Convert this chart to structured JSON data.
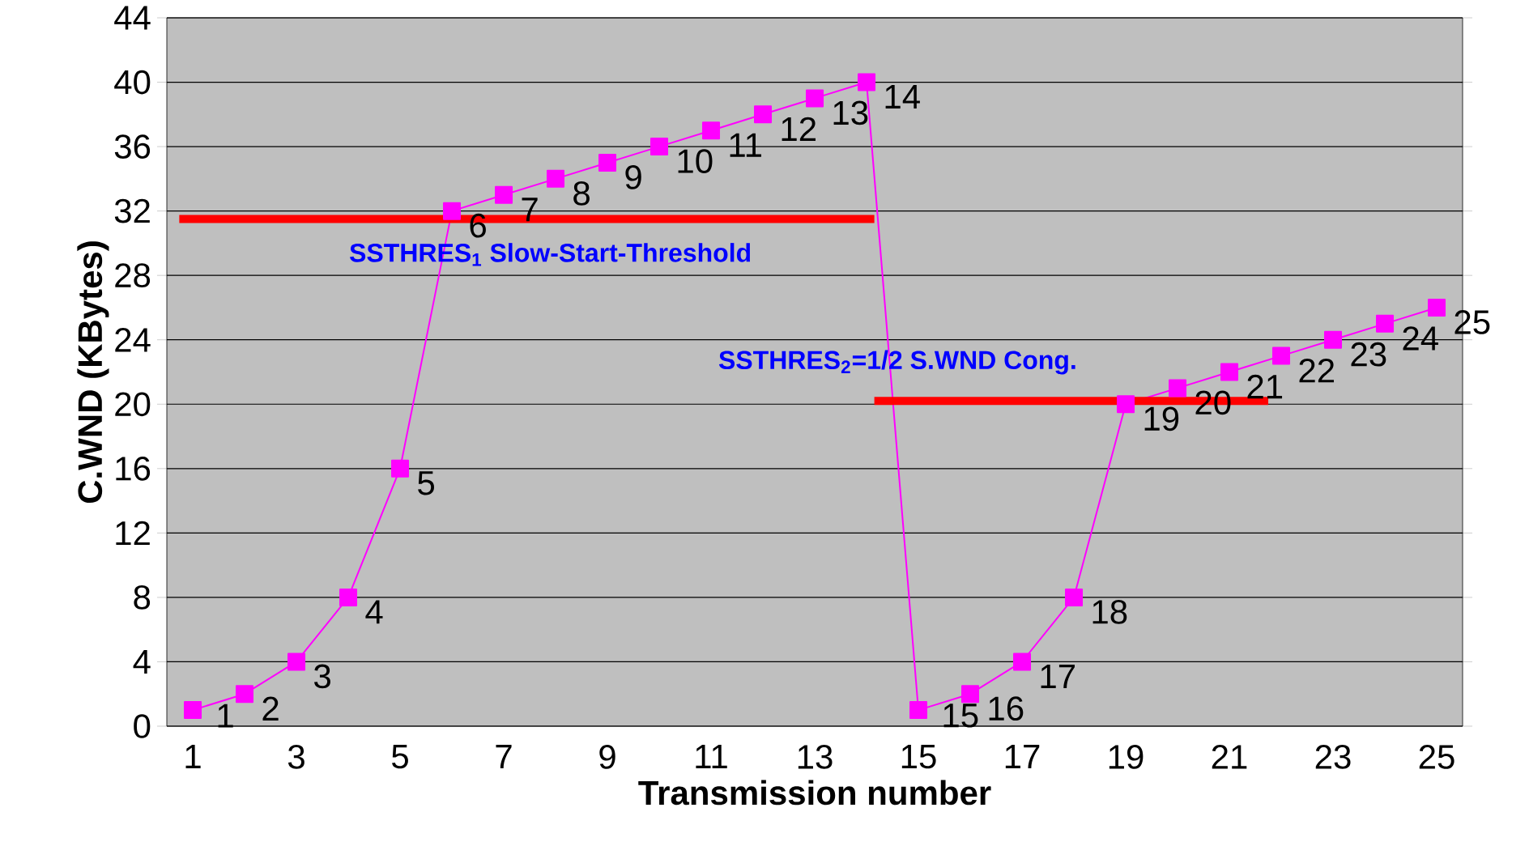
{
  "chart_data": {
    "type": "line",
    "xlabel": "Transmission number",
    "ylabel": "C.WND (KBytes)",
    "xlim": [
      0.5,
      25.5
    ],
    "xticks": [
      1,
      3,
      5,
      7,
      9,
      11,
      13,
      15,
      17,
      19,
      21,
      23,
      25
    ],
    "ylim": [
      0,
      44
    ],
    "yticks": [
      0,
      4,
      8,
      12,
      16,
      20,
      24,
      28,
      32,
      36,
      40,
      44
    ],
    "grid": "y",
    "series": [
      {
        "color": "#ff00ff",
        "marker": "square",
        "x": [
          1,
          2,
          3,
          4,
          5,
          6,
          7,
          8,
          9,
          10,
          11,
          12,
          13,
          14,
          15,
          16,
          17,
          18,
          19,
          20,
          21,
          22,
          23,
          24,
          25
        ],
        "values": [
          1,
          2,
          4,
          8,
          16,
          32,
          33,
          34,
          35,
          36,
          37,
          38,
          39,
          40,
          1,
          2,
          4,
          8,
          20,
          21,
          22,
          23,
          24,
          25,
          26
        ]
      },
      {
        "color": "#ff0000",
        "marker": "none",
        "x": [
          0.74,
          14.15
        ],
        "values": [
          31.5,
          31.5
        ]
      },
      {
        "color": "#ff0000",
        "marker": "none",
        "x": [
          14.15,
          21.75
        ],
        "values": [
          20.2,
          20.2
        ]
      }
    ],
    "annotations": [
      "SSTHRES$_{1}$ Slow-Start-Threshold",
      "SSTHRES$_{2}$=1/2 S.WND Cong.",
      {
        "text": "1",
        "x": 1,
        "y": 1
      },
      {
        "text": "2",
        "x": 2,
        "y": 2
      },
      {
        "text": "3",
        "x": 3,
        "y": 4
      },
      {
        "text": "4",
        "x": 4,
        "y": 8
      },
      {
        "text": "5",
        "x": 5,
        "y": 16
      },
      {
        "text": "6",
        "x": 6,
        "y": 32
      },
      {
        "text": "7",
        "x": 7,
        "y": 33
      },
      {
        "text": "8",
        "x": 8,
        "y": 34
      },
      {
        "text": "9",
        "x": 9,
        "y": 35
      },
      {
        "text": "10",
        "x": 10,
        "y": 36
      },
      {
        "text": "11",
        "x": 11,
        "y": 37
      },
      {
        "text": "12",
        "x": 12,
        "y": 38
      },
      {
        "text": "13",
        "x": 13,
        "y": 39
      },
      {
        "text": "14",
        "x": 14,
        "y": 40
      },
      {
        "text": "15",
        "x": 15,
        "y": 1
      },
      {
        "text": "16",
        "x": 16,
        "y": 2
      },
      {
        "text": "17",
        "x": 17,
        "y": 4
      },
      {
        "text": "18",
        "x": 18,
        "y": 8
      },
      {
        "text": "19",
        "x": 19,
        "y": 20
      },
      {
        "text": "20",
        "x": 20,
        "y": 21
      },
      {
        "text": "21",
        "x": 21,
        "y": 22
      },
      {
        "text": "22",
        "x": 22,
        "y": 23
      },
      {
        "text": "23",
        "x": 23,
        "y": 24
      },
      {
        "text": "24",
        "x": 24,
        "y": 25
      },
      {
        "text": "25",
        "x": 25,
        "y": 26
      }
    ]
  }
}
